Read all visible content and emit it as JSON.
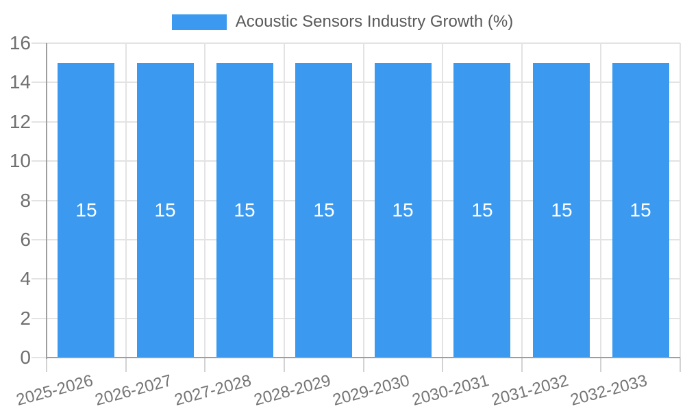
{
  "chart_data": {
    "type": "bar",
    "title": "Acoustic Sensors Industry Growth (%)",
    "categories": [
      "2025-2026",
      "2026-2027",
      "2027-2028",
      "2028-2029",
      "2029-2030",
      "2030-2031",
      "2031-2032",
      "2032-2033"
    ],
    "series": [
      {
        "name": "Acoustic Sensors Industry Growth (%)",
        "values": [
          15,
          15,
          15,
          15,
          15,
          15,
          15,
          15
        ]
      }
    ],
    "values": [
      15,
      15,
      15,
      15,
      15,
      15,
      15,
      15
    ],
    "bar_labels": [
      "15",
      "15",
      "15",
      "15",
      "15",
      "15",
      "15",
      "15"
    ],
    "ytick_labels": [
      "0",
      "2",
      "4",
      "6",
      "8",
      "10",
      "12",
      "14",
      "16"
    ],
    "yticks": [
      0,
      2,
      4,
      6,
      8,
      10,
      12,
      14,
      16
    ],
    "ylim": [
      0,
      16
    ],
    "grid": true,
    "legend_position": "top",
    "x_label_rotation_deg": -15,
    "colors": {
      "bar": "#3B9AF0",
      "bar_label": "#FFFFFF",
      "grid": "#E3E3E3",
      "x_tick": "#D2D2D2",
      "axis": "#9E9E9E",
      "y_tick_text": "#6F6F6F",
      "x_tick_text": "#757575",
      "legend_text": "#595959"
    }
  }
}
